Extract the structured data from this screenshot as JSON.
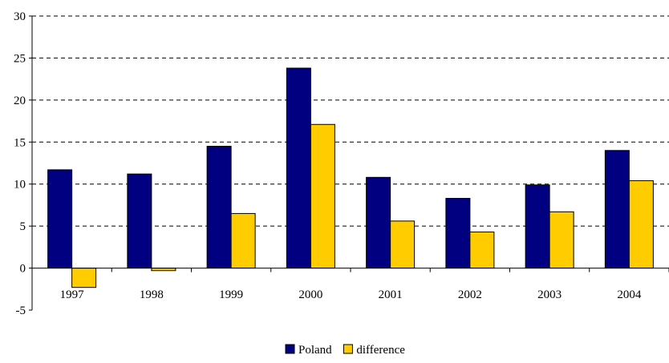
{
  "chart_data": {
    "type": "bar",
    "categories": [
      "1997",
      "1998",
      "1999",
      "2000",
      "2001",
      "2002",
      "2003",
      "2004"
    ],
    "series": [
      {
        "name": "Poland",
        "color": "#000080",
        "values": [
          11.7,
          11.2,
          14.5,
          23.8,
          10.8,
          8.3,
          9.9,
          14.0
        ]
      },
      {
        "name": "difference",
        "color": "#FFCC00",
        "values": [
          -2.3,
          -0.3,
          6.5,
          17.1,
          5.6,
          4.3,
          6.7,
          10.4
        ]
      }
    ],
    "ylim": [
      -5,
      30
    ],
    "yticks": [
      -5,
      0,
      5,
      10,
      15,
      20,
      25,
      30
    ],
    "grid": "horizontal-dashed",
    "legend": "bottom-center",
    "title": "",
    "xlabel": "",
    "ylabel": ""
  }
}
